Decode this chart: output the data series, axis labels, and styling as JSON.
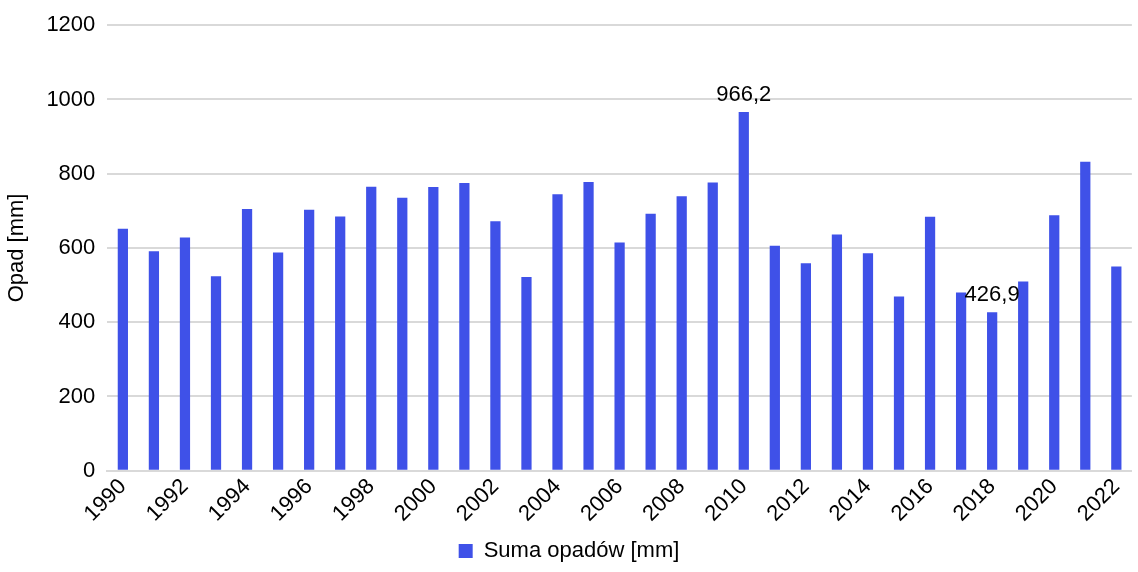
{
  "chart_data": {
    "type": "bar",
    "ylabel": "Opad [mm]",
    "categories": [
      "1990",
      null,
      "1992",
      null,
      "1994",
      null,
      "1996",
      null,
      "1998",
      null,
      "2000",
      null,
      "2002",
      null,
      "2004",
      null,
      "2006",
      null,
      "2008",
      null,
      "2010",
      null,
      "2012",
      null,
      "2014",
      null,
      "2016",
      null,
      "2018",
      null,
      "2020",
      null,
      "2022"
    ],
    "series": [
      {
        "name": "Suma opadów [mm]",
        "color": "#3f51e8",
        "values": [
          652,
          591,
          628,
          524,
          705,
          588,
          703,
          685,
          765,
          735,
          764,
          775,
          672,
          522,
          745,
          778,
          615,
          692,
          739,
          776,
          966.2,
          606,
          559,
          636,
          586,
          469,
          684,
          480,
          426.9,
          510,
          688,
          832,
          550
        ],
        "value_labels": [
          null,
          null,
          null,
          null,
          null,
          null,
          null,
          null,
          null,
          null,
          null,
          null,
          null,
          null,
          null,
          null,
          null,
          null,
          null,
          null,
          "966,2",
          null,
          null,
          null,
          null,
          null,
          null,
          null,
          "426,9",
          null,
          null,
          null,
          null
        ]
      }
    ],
    "ylim": [
      0,
      1200
    ],
    "yticks": [
      0,
      200,
      400,
      600,
      800,
      1000,
      1200
    ],
    "grid": "y",
    "legend": "bottom"
  }
}
